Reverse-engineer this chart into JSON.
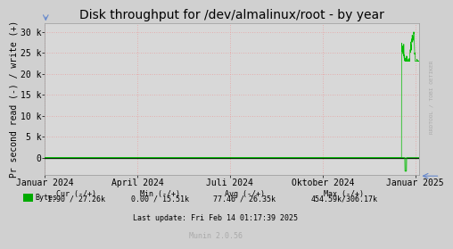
{
  "title": "Disk throughput for /dev/almalinux/root - by year",
  "ylabel": "Pr second read (-) / write (+)",
  "xlabel_ticks": [
    "Januar 2024",
    "April 2024",
    "Juli 2024",
    "Oktober 2024",
    "Januar 2025"
  ],
  "xlabel_tick_positions": [
    0.0,
    0.247,
    0.494,
    0.742,
    0.989
  ],
  "ylim": [
    -4000,
    32000
  ],
  "yticks": [
    0,
    5000,
    10000,
    15000,
    20000,
    25000,
    30000
  ],
  "ytick_labels": [
    "0",
    "5 k",
    "10 k",
    "15 k",
    "20 k",
    "25 k",
    "30 k"
  ],
  "bg_color": "#d0d0d0",
  "plot_bg_color": "#d8d8d8",
  "grid_color_h": "#e8a0a0",
  "grid_color_v": "#e8a0a0",
  "line_color": "#00bb00",
  "legend_sq_color": "#00aa00",
  "watermark": "RRDTOOL / TOBI OETIKER",
  "title_fontsize": 10,
  "axis_fontsize": 7,
  "stats_fontsize": 6,
  "munin_fontsize": 6,
  "ylabel_fontsize": 7,
  "legend_label": "Bytes",
  "cur_label": "Cur (-/+)",
  "min_label": "Min (-/+)",
  "avg_label": "Avg (-/+)",
  "max_label": "Max (-/+)",
  "cur_val": "1.90 / 27.26k",
  "min_val": "0.00 / 15.51k",
  "avg_val": "77.46 / 26.35k",
  "max_val": "454.59k/306.17k",
  "last_update": "Last update: Fri Feb 14 01:17:39 2025",
  "munin_version": "Munin 2.0.56"
}
